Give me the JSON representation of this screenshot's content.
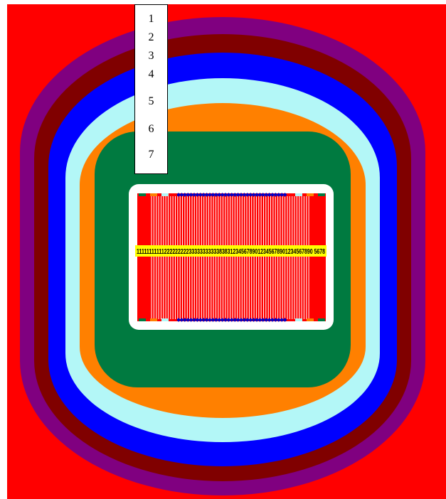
{
  "legend": {
    "labels": [
      "1",
      "2",
      "3",
      "4",
      "5",
      "6",
      "7"
    ]
  },
  "colors": {
    "background": "#ff0000",
    "ring_purple": "#800080",
    "ring_maroon": "#800000",
    "ring_blue": "#0000ff",
    "ring_lightcyan": "#b3f7f7",
    "ring_orange": "#ff8000",
    "ring_green": "#007a40",
    "inner_frame": "#ffffff",
    "core": "#ff0000",
    "strip": "#ffff00",
    "pin": "#0000c8",
    "strip_text": "#000000"
  },
  "center_strip": {
    "text": "11111111111222222222333333333338383123456789012345678901234567890 5678"
  }
}
